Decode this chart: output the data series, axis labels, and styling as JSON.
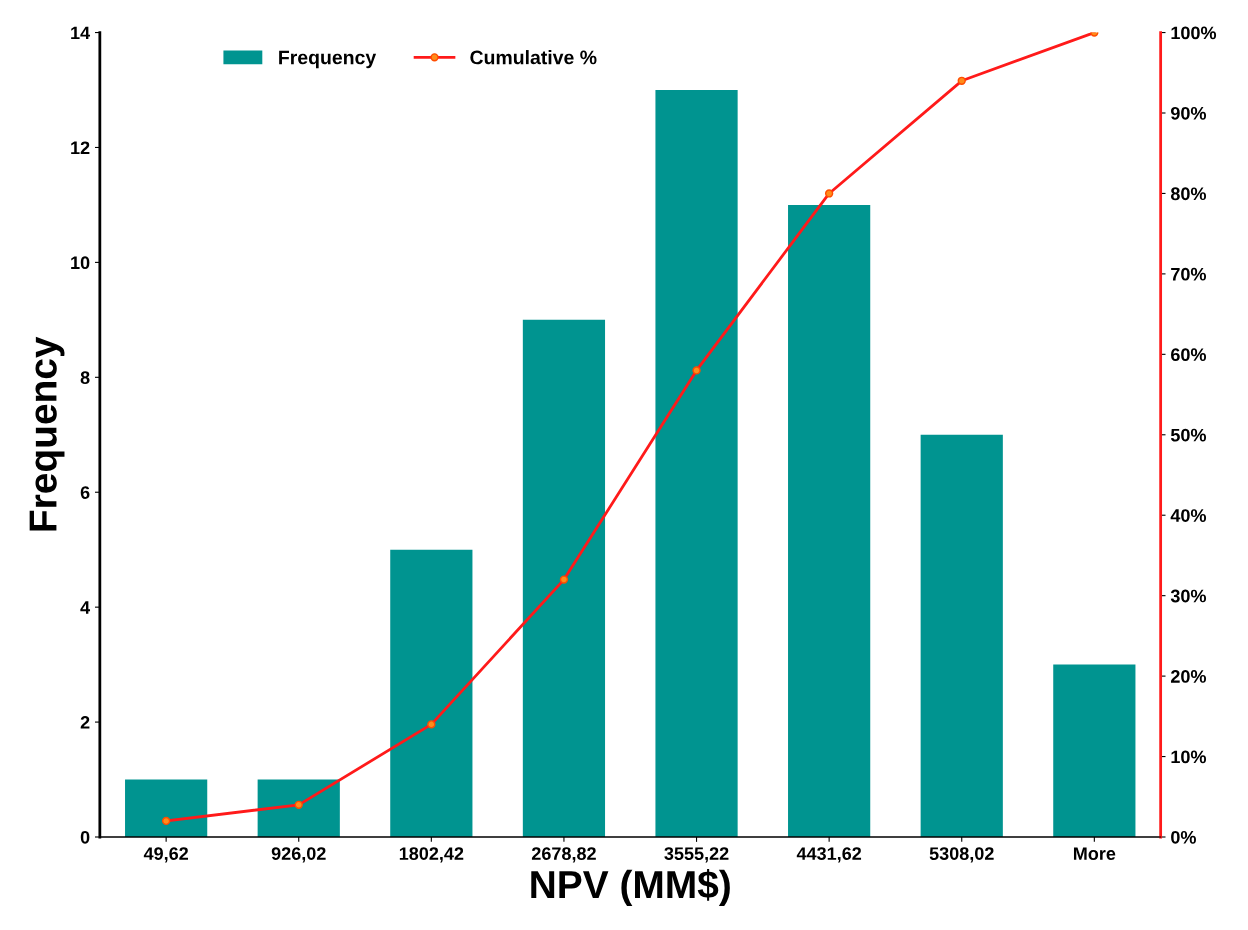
{
  "chart_data": {
    "type": "bar",
    "categories": [
      "49,62",
      "926,02",
      "1802,42",
      "2678,82",
      "3555,22",
      "4431,62",
      "5308,02",
      "More"
    ],
    "series": [
      {
        "name": "Frequency",
        "color": "#009490",
        "values": [
          1,
          1,
          5,
          9,
          13,
          11,
          7,
          3
        ]
      },
      {
        "name": "Cumulative %",
        "type": "line",
        "axis": "y2",
        "color": "#ff1a1a",
        "values": [
          2,
          4,
          14,
          32,
          58,
          80,
          94,
          100
        ]
      }
    ],
    "xlabel": "NPV (MM$)",
    "ylabel": "Frequency",
    "ylim": [
      0,
      14
    ],
    "yticks": [
      0,
      2,
      4,
      6,
      8,
      10,
      12,
      14
    ],
    "y2lim": [
      0,
      100
    ],
    "y2ticks": [
      {
        "value": 0,
        "label": "0%"
      },
      {
        "value": 10,
        "label": "10%"
      },
      {
        "value": 20,
        "label": "20%"
      },
      {
        "value": 30,
        "label": "30%"
      },
      {
        "value": 40,
        "label": "40%"
      },
      {
        "value": 50,
        "label": "50%"
      },
      {
        "value": 60,
        "label": "60%"
      },
      {
        "value": 70,
        "label": "70%"
      },
      {
        "value": 80,
        "label": "80%"
      },
      {
        "value": 90,
        "label": "90%"
      },
      {
        "value": 100,
        "label": "100%"
      }
    ],
    "legend": "top left",
    "marker": "circle"
  }
}
